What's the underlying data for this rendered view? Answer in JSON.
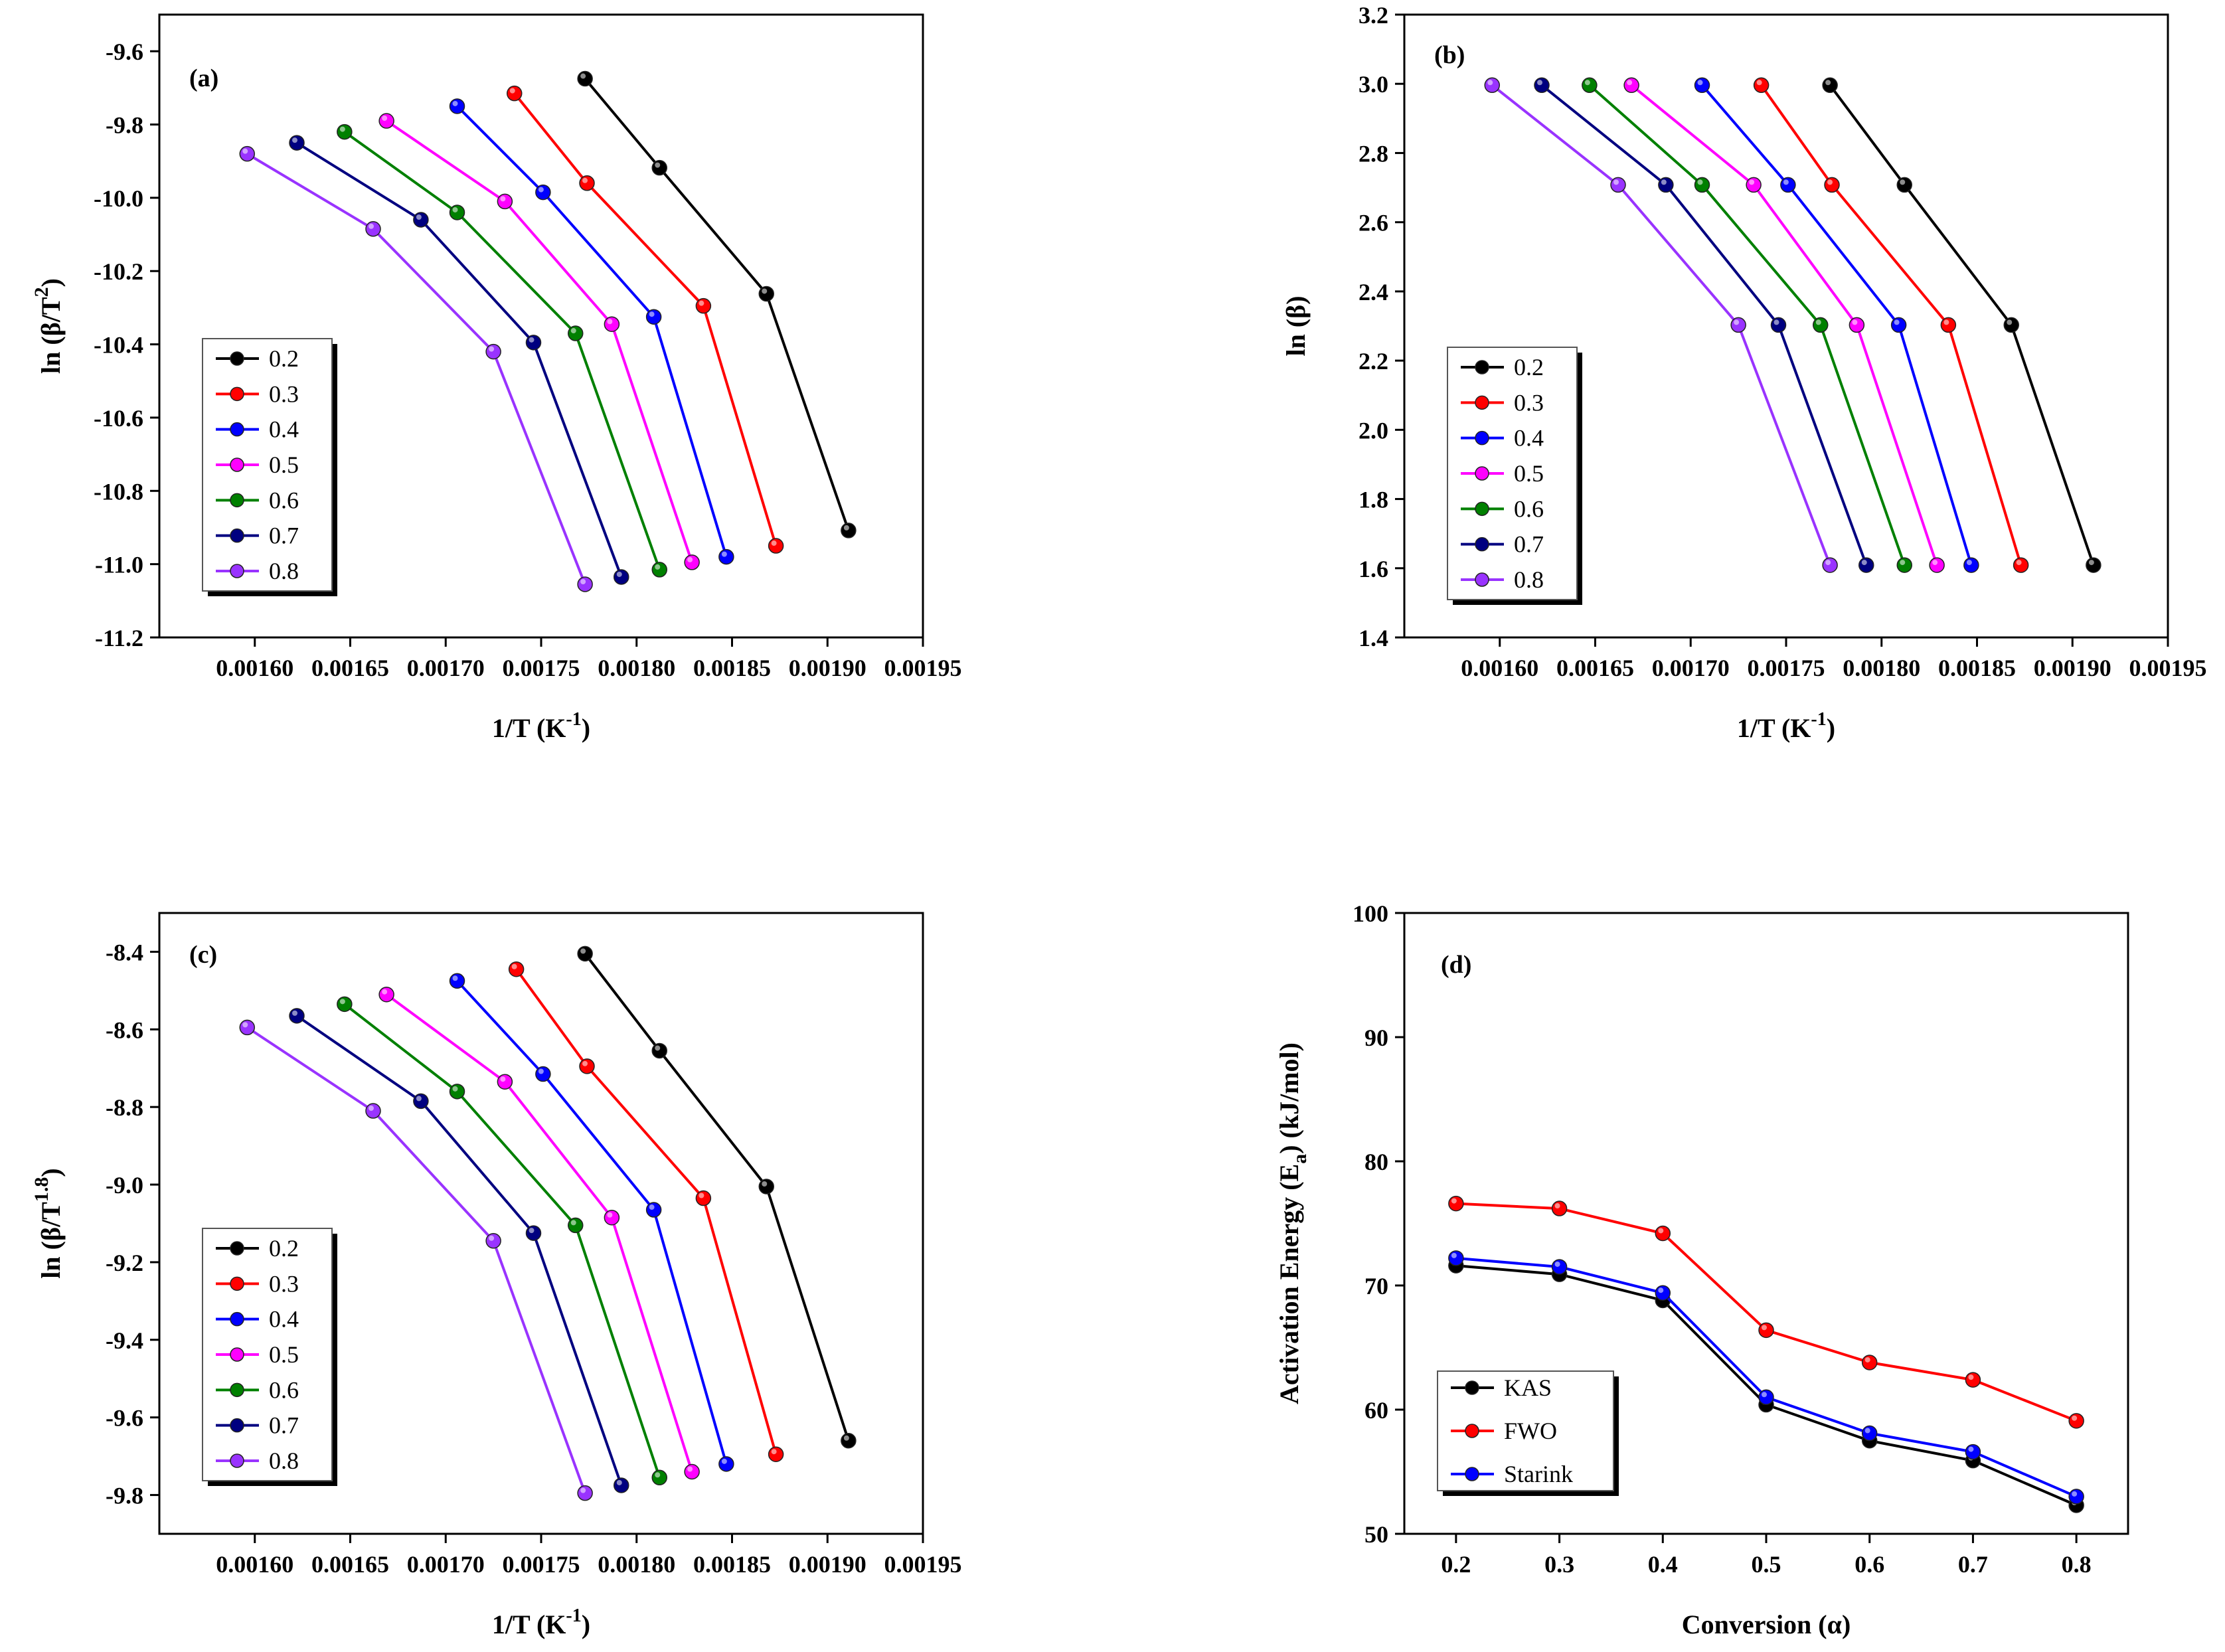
{
  "chart_data": [
    {
      "panel": "(a)",
      "type": "line",
      "xlabel": "1/T (K",
      "xlabel_sup": "-1",
      "xlabel_end": ")",
      "ylabel": "ln (β/T",
      "ylabel_sup": "2",
      "ylabel_end": ")",
      "xlim": [
        0.00155,
        0.00195
      ],
      "ylim": [
        -11.2,
        -9.5
      ],
      "xticks": [
        0.0016,
        0.00165,
        0.0017,
        0.00175,
        0.0018,
        0.00185,
        0.0019,
        0.00195
      ],
      "xtick_labels": [
        "0.00160",
        "0.00165",
        "0.00170",
        "0.00175",
        "0.00180",
        "0.00185",
        "0.00190",
        "0.00195"
      ],
      "yticks": [
        -11.2,
        -11.0,
        -10.8,
        -10.6,
        -10.4,
        -10.2,
        -10.0,
        -9.8,
        -9.6
      ],
      "ytick_labels": [
        "-11.2",
        "-11.0",
        "-10.8",
        "-10.6",
        "-10.4",
        "-10.2",
        "-10.0",
        "-9.8",
        "-9.6"
      ],
      "legend_position": "lower-left",
      "series": [
        {
          "name": "0.2",
          "color": "#000000",
          "x": [
            0.001773,
            0.001812,
            0.001868,
            0.001911
          ],
          "y": [
            -9.675,
            -9.918,
            -10.262,
            -10.908
          ]
        },
        {
          "name": "0.3",
          "color": "#ff0000",
          "x": [
            0.001736,
            0.001774,
            0.001835,
            0.001873
          ],
          "y": [
            -9.715,
            -9.96,
            -10.295,
            -10.95
          ]
        },
        {
          "name": "0.4",
          "color": "#0000ff",
          "x": [
            0.001706,
            0.001751,
            0.001809,
            0.001847
          ],
          "y": [
            -9.75,
            -9.985,
            -10.325,
            -10.98
          ]
        },
        {
          "name": "0.5",
          "color": "#ff00ff",
          "x": [
            0.001669,
            0.001731,
            0.001787,
            0.001829
          ],
          "y": [
            -9.79,
            -10.01,
            -10.345,
            -10.995
          ]
        },
        {
          "name": "0.6",
          "color": "#008000",
          "x": [
            0.001647,
            0.001706,
            0.001768,
            0.001812
          ],
          "y": [
            -9.82,
            -10.04,
            -10.37,
            -11.015
          ]
        },
        {
          "name": "0.7",
          "color": "#000080",
          "x": [
            0.001622,
            0.001687,
            0.001746,
            0.001792
          ],
          "y": [
            -9.85,
            -10.06,
            -10.395,
            -11.035
          ]
        },
        {
          "name": "0.8",
          "color": "#9933ff",
          "x": [
            0.001596,
            0.001662,
            0.001725,
            0.001773
          ],
          "y": [
            -9.88,
            -10.085,
            -10.42,
            -11.055
          ]
        }
      ]
    },
    {
      "panel": "(b)",
      "type": "line",
      "xlabel": "1/T (K",
      "xlabel_sup": "-1",
      "xlabel_end": ")",
      "ylabel": "ln (β)",
      "ylabel_sup": "",
      "ylabel_end": "",
      "xlim": [
        0.00155,
        0.00195
      ],
      "ylim": [
        1.4,
        3.2
      ],
      "xticks": [
        0.0016,
        0.00165,
        0.0017,
        0.00175,
        0.0018,
        0.00185,
        0.0019,
        0.00195
      ],
      "xtick_labels": [
        "0.00160",
        "0.00165",
        "0.00170",
        "0.00175",
        "0.00180",
        "0.00185",
        "0.00190",
        "0.00195"
      ],
      "yticks": [
        1.4,
        1.6,
        1.8,
        2.0,
        2.2,
        2.4,
        2.6,
        2.8,
        3.0,
        3.2
      ],
      "ytick_labels": [
        "1.4",
        "1.6",
        "1.8",
        "2.0",
        "2.2",
        "2.4",
        "2.6",
        "2.8",
        "3.0",
        "3.2"
      ],
      "legend_position": "lower-left",
      "series": [
        {
          "name": "0.2",
          "color": "#000000",
          "x": [
            0.001773,
            0.001812,
            0.001868,
            0.001911
          ],
          "y": [
            2.996,
            2.708,
            2.303,
            1.609
          ]
        },
        {
          "name": "0.3",
          "color": "#ff0000",
          "x": [
            0.001737,
            0.001774,
            0.001835,
            0.001873
          ],
          "y": [
            2.996,
            2.708,
            2.303,
            1.609
          ]
        },
        {
          "name": "0.4",
          "color": "#0000ff",
          "x": [
            0.001706,
            0.001751,
            0.001809,
            0.001847
          ],
          "y": [
            2.996,
            2.708,
            2.303,
            1.609
          ]
        },
        {
          "name": "0.5",
          "color": "#ff00ff",
          "x": [
            0.001669,
            0.001733,
            0.001787,
            0.001829
          ],
          "y": [
            2.996,
            2.708,
            2.303,
            1.609
          ]
        },
        {
          "name": "0.6",
          "color": "#008000",
          "x": [
            0.001647,
            0.001706,
            0.001768,
            0.001812
          ],
          "y": [
            2.996,
            2.708,
            2.303,
            1.609
          ]
        },
        {
          "name": "0.7",
          "color": "#000080",
          "x": [
            0.001622,
            0.001687,
            0.001746,
            0.001792
          ],
          "y": [
            2.996,
            2.708,
            2.303,
            1.609
          ]
        },
        {
          "name": "0.8",
          "color": "#9933ff",
          "x": [
            0.001596,
            0.001662,
            0.001725,
            0.001773
          ],
          "y": [
            2.996,
            2.708,
            2.303,
            1.609
          ]
        }
      ]
    },
    {
      "panel": "(c)",
      "type": "line",
      "xlabel": "1/T (K",
      "xlabel_sup": "-1",
      "xlabel_end": ")",
      "ylabel": "ln (β/T",
      "ylabel_sup": "1.8",
      "ylabel_end": ")",
      "xlim": [
        0.00155,
        0.00195
      ],
      "ylim": [
        -9.9,
        -8.3
      ],
      "xticks": [
        0.0016,
        0.00165,
        0.0017,
        0.00175,
        0.0018,
        0.00185,
        0.0019,
        0.00195
      ],
      "xtick_labels": [
        "0.00160",
        "0.00165",
        "0.00170",
        "0.00175",
        "0.00180",
        "0.00185",
        "0.00190",
        "0.00195"
      ],
      "yticks": [
        -9.8,
        -9.6,
        -9.4,
        -9.2,
        -9.0,
        -8.8,
        -8.6,
        -8.4
      ],
      "ytick_labels": [
        "-9.8",
        "-9.6",
        "-9.4",
        "-9.2",
        "-9.0",
        "-8.8",
        "-8.6",
        "-8.4"
      ],
      "legend_position": "lower-left",
      "series": [
        {
          "name": "0.2",
          "color": "#000000",
          "x": [
            0.001773,
            0.001812,
            0.001868,
            0.001911
          ],
          "y": [
            -8.405,
            -8.655,
            -9.005,
            -9.66
          ]
        },
        {
          "name": "0.3",
          "color": "#ff0000",
          "x": [
            0.001737,
            0.001774,
            0.001835,
            0.001873
          ],
          "y": [
            -8.445,
            -8.695,
            -9.035,
            -9.695
          ]
        },
        {
          "name": "0.4",
          "color": "#0000ff",
          "x": [
            0.001706,
            0.001751,
            0.001809,
            0.001847
          ],
          "y": [
            -8.475,
            -8.715,
            -9.065,
            -9.72
          ]
        },
        {
          "name": "0.5",
          "color": "#ff00ff",
          "x": [
            0.001669,
            0.001731,
            0.001787,
            0.001829
          ],
          "y": [
            -8.51,
            -8.735,
            -9.085,
            -9.74
          ]
        },
        {
          "name": "0.6",
          "color": "#008000",
          "x": [
            0.001647,
            0.001706,
            0.001768,
            0.001812
          ],
          "y": [
            -8.535,
            -8.76,
            -9.105,
            -9.755
          ]
        },
        {
          "name": "0.7",
          "color": "#000080",
          "x": [
            0.001622,
            0.001687,
            0.001746,
            0.001792
          ],
          "y": [
            -8.565,
            -8.785,
            -9.125,
            -9.775
          ]
        },
        {
          "name": "0.8",
          "color": "#9933ff",
          "x": [
            0.001596,
            0.001662,
            0.001725,
            0.001773
          ],
          "y": [
            -8.595,
            -8.81,
            -9.145,
            -9.795
          ]
        }
      ]
    },
    {
      "panel": "(d)",
      "type": "line",
      "xlabel": "Conversion (α)",
      "xlabel_sup": "",
      "xlabel_end": "",
      "ylabel": "Activation Energy (E",
      "ylabel_sub": "a",
      "ylabel_end": ") (kJ/mol)",
      "xlim": [
        0.15,
        0.85
      ],
      "ylim": [
        50,
        100
      ],
      "xticks": [
        0.2,
        0.3,
        0.4,
        0.5,
        0.6,
        0.7,
        0.8
      ],
      "xtick_labels": [
        "0.2",
        "0.3",
        "0.4",
        "0.5",
        "0.6",
        "0.7",
        "0.8"
      ],
      "yticks": [
        50,
        60,
        70,
        80,
        90,
        100
      ],
      "ytick_labels": [
        "50",
        "60",
        "70",
        "80",
        "90",
        "100"
      ],
      "legend_position": "lower-left",
      "series": [
        {
          "name": "KAS",
          "color": "#000000",
          "x": [
            0.2,
            0.3,
            0.4,
            0.5,
            0.6,
            0.7,
            0.8
          ],
          "y": [
            71.6,
            70.9,
            68.8,
            60.4,
            57.5,
            55.9,
            52.3
          ]
        },
        {
          "name": "FWO",
          "color": "#ff0000",
          "x": [
            0.2,
            0.3,
            0.4,
            0.5,
            0.6,
            0.7,
            0.8
          ],
          "y": [
            76.6,
            76.2,
            74.2,
            66.4,
            63.8,
            62.4,
            59.1
          ]
        },
        {
          "name": "Starink",
          "color": "#0000ff",
          "x": [
            0.2,
            0.3,
            0.4,
            0.5,
            0.6,
            0.7,
            0.8
          ],
          "y": [
            72.2,
            71.5,
            69.4,
            61.0,
            58.1,
            56.6,
            53.0
          ]
        }
      ]
    }
  ]
}
